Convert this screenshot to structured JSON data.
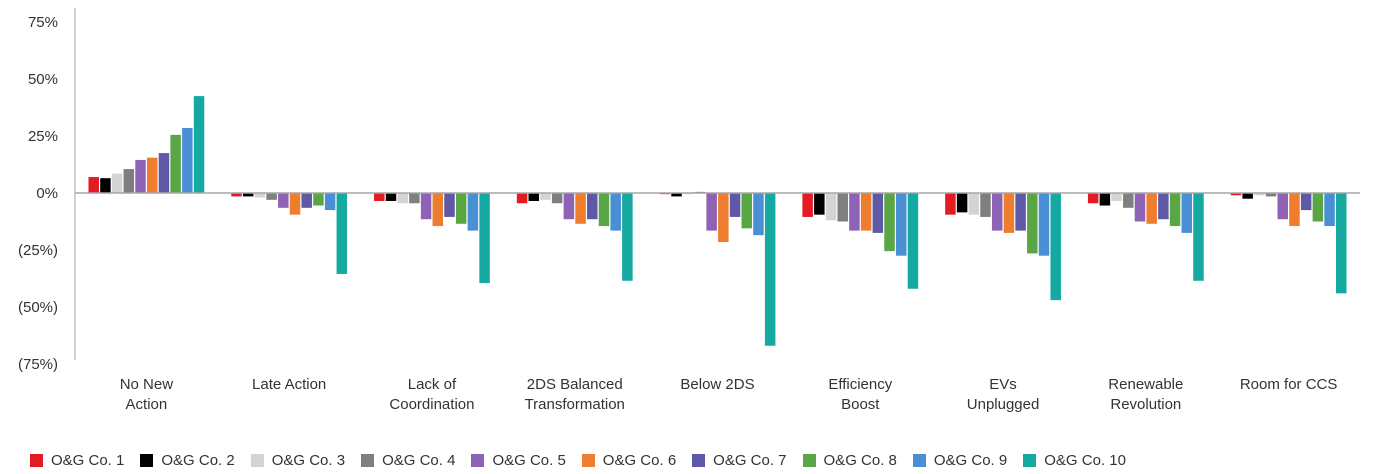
{
  "chart_data": {
    "type": "bar",
    "title": "",
    "xlabel": "",
    "ylabel": "",
    "ylim": [
      -75,
      75
    ],
    "yticks": [
      75,
      50,
      25,
      0,
      -25,
      -50,
      -75
    ],
    "ytick_labels": [
      "75%",
      "50%",
      "25%",
      "0%",
      "(25%)",
      "(50%)",
      "(75%)"
    ],
    "grid": false,
    "legend_position": "bottom",
    "categories": [
      [
        "No New",
        "Action"
      ],
      [
        "Late Action"
      ],
      [
        "Lack of",
        "Coordination"
      ],
      [
        "2DS Balanced",
        "Transformation"
      ],
      [
        "Below 2DS"
      ],
      [
        "Efficiency",
        "Boost"
      ],
      [
        "EVs",
        "Unplugged"
      ],
      [
        "Renewable",
        "Revolution"
      ],
      [
        "Room for CCS"
      ]
    ],
    "series": [
      {
        "name": "O&G Co. 1",
        "color": "#e31b23",
        "values": [
          7,
          -1.5,
          -3.5,
          -4.5,
          -0.5,
          -10.5,
          -9.5,
          -4.5,
          -1
        ]
      },
      {
        "name": "O&G Co. 2",
        "color": "#000000",
        "values": [
          6.5,
          -1.5,
          -3.5,
          -3.5,
          -1.5,
          -9.5,
          -8.5,
          -5.5,
          -2.5
        ]
      },
      {
        "name": "O&G Co. 3",
        "color": "#d4d4d4",
        "values": [
          8.5,
          -2,
          -4.5,
          -3,
          -0.5,
          -12,
          -9.5,
          -3.5,
          -1
        ]
      },
      {
        "name": "O&G Co. 4",
        "color": "#7f7f7f",
        "values": [
          10.5,
          -3,
          -4.5,
          -4.5,
          0.5,
          -12.5,
          -10.5,
          -6.5,
          -1.5
        ]
      },
      {
        "name": "O&G Co. 5",
        "color": "#8e63b6",
        "values": [
          14.5,
          -6.5,
          -11.5,
          -11.5,
          -16.5,
          -16.5,
          -16.5,
          -12.5,
          -11.5
        ]
      },
      {
        "name": "O&G Co. 6",
        "color": "#ef7d2f",
        "values": [
          15.5,
          -9.5,
          -14.5,
          -13.5,
          -21.5,
          -16.5,
          -17.5,
          -13.5,
          -14.5
        ]
      },
      {
        "name": "O&G Co. 7",
        "color": "#5e59a6",
        "values": [
          17.5,
          -6.5,
          -10.5,
          -11.5,
          -10.5,
          -17.5,
          -16.5,
          -11.5,
          -7.5
        ]
      },
      {
        "name": "O&G Co. 8",
        "color": "#5aa645",
        "values": [
          25.5,
          -5.5,
          -13.5,
          -14.5,
          -15.5,
          -25.5,
          -26.5,
          -14.5,
          -12.5
        ]
      },
      {
        "name": "O&G Co. 9",
        "color": "#4a8fd4",
        "values": [
          28.5,
          -7.5,
          -16.5,
          -16.5,
          -18.5,
          -27.5,
          -27.5,
          -17.5,
          -14.5
        ]
      },
      {
        "name": "O&G Co. 10",
        "color": "#16a9a2",
        "values": [
          42.5,
          -35.5,
          -39.5,
          -38.5,
          -67,
          -42,
          -47,
          -38.5,
          -44
        ]
      }
    ]
  }
}
